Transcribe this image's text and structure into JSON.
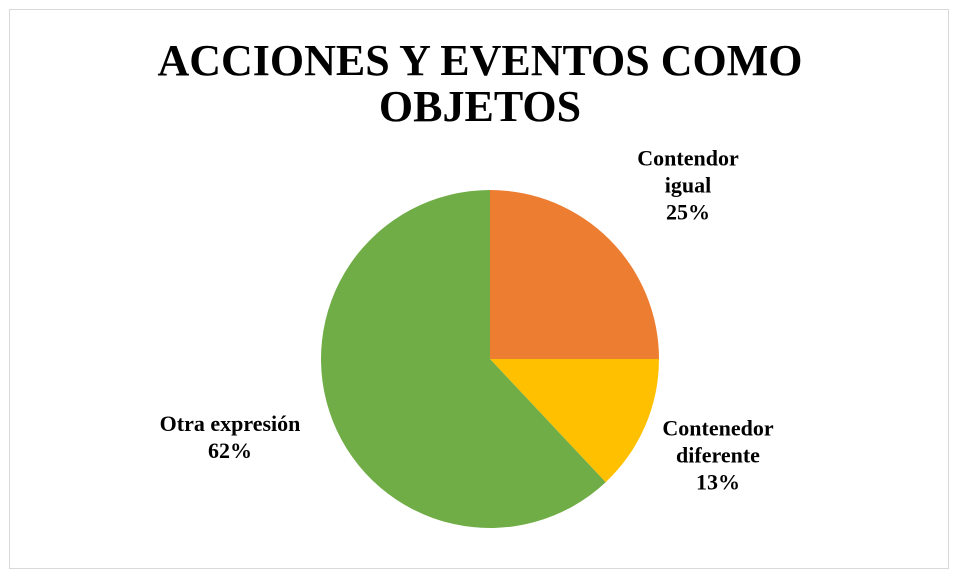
{
  "chart_data": {
    "type": "pie",
    "title": "ACCIONES Y EVENTOS COMO OBJETOS",
    "categories": [
      "Contendor igual",
      "Contenedor diferente",
      "Otra expresión"
    ],
    "values": [
      25,
      13,
      62
    ],
    "value_labels": [
      "25%",
      "13%",
      "62%"
    ],
    "colors": [
      "#ed7d31",
      "#ffc000",
      "#70ad47"
    ]
  }
}
